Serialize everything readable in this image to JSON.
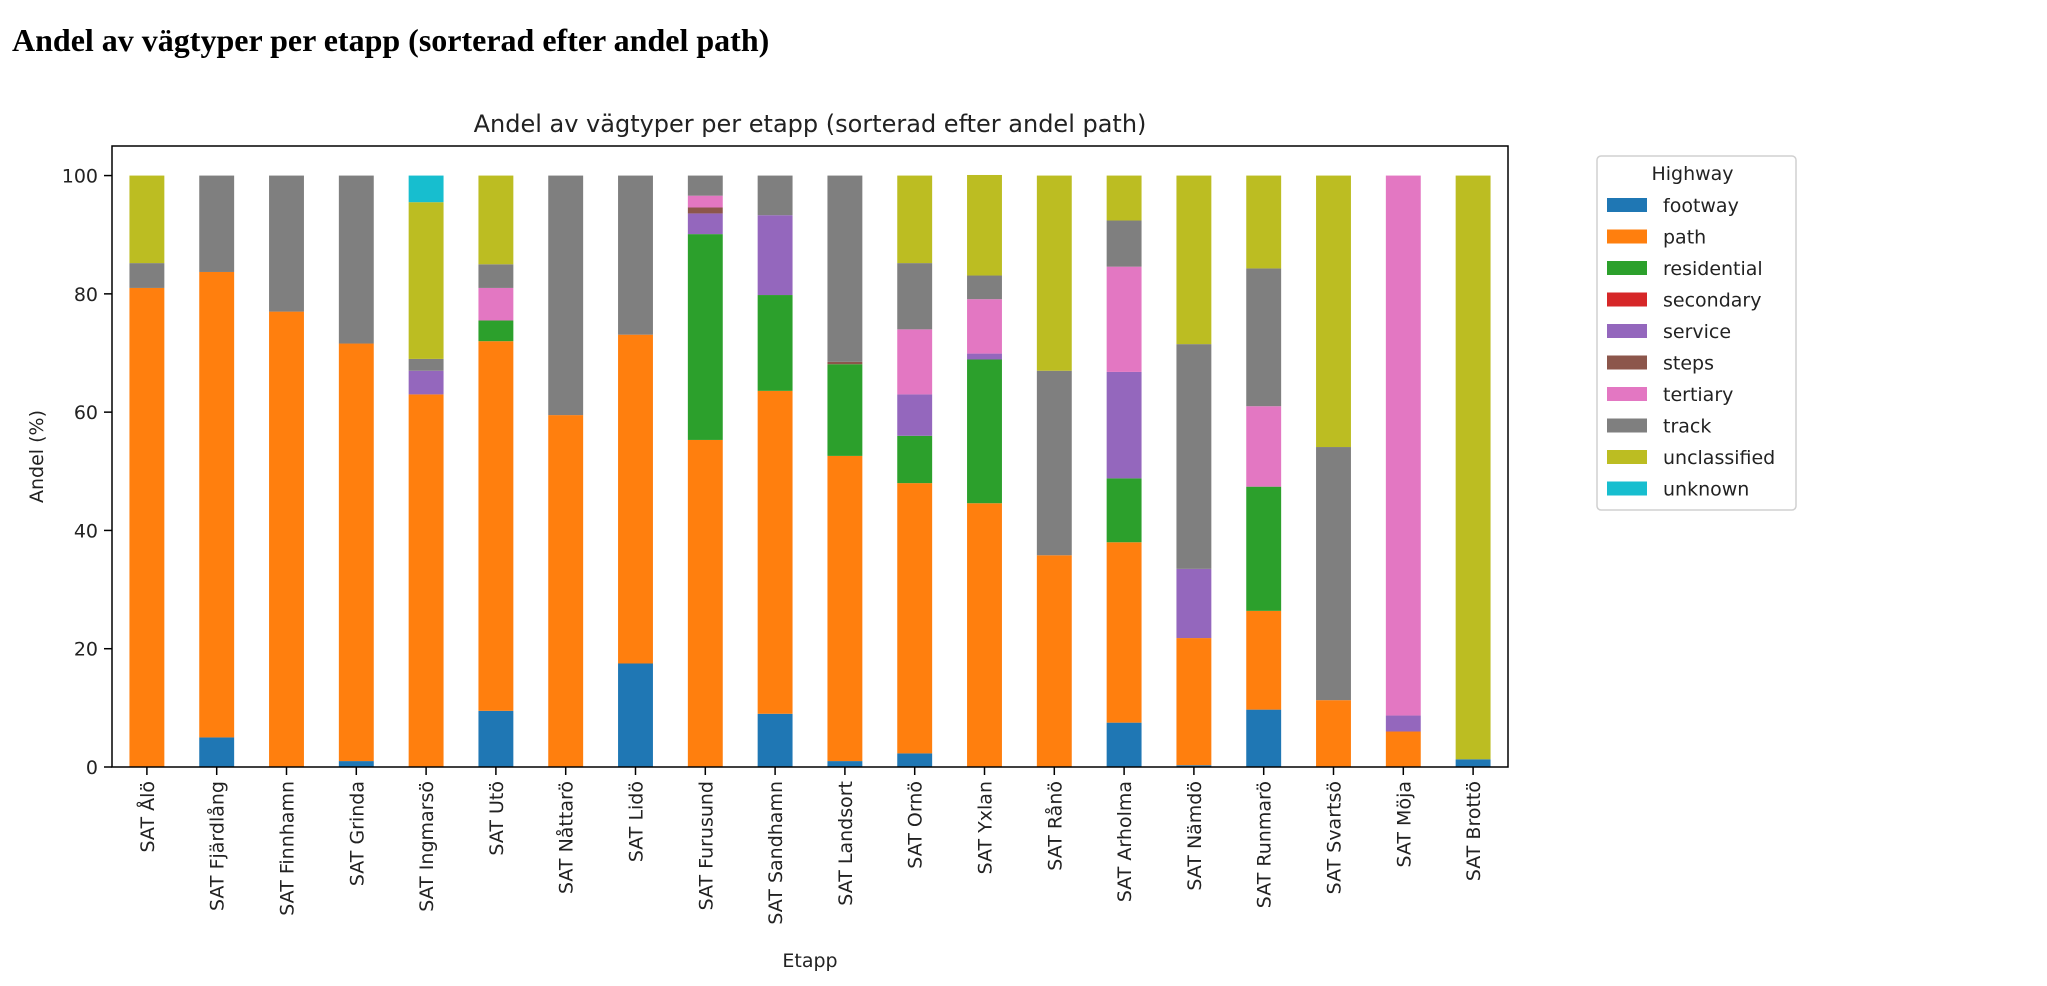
{
  "page": {
    "heading": "Andel av vägtyper per etapp (sorterad efter andel path)"
  },
  "colors": {
    "footway": "#1f77b4",
    "path": "#ff7f0e",
    "residential": "#2ca02c",
    "secondary": "#d62728",
    "service": "#9467bd",
    "steps": "#8c564b",
    "tertiary": "#e377c2",
    "track": "#7f7f7f",
    "unclassified": "#bcbd22",
    "unknown": "#17becf"
  },
  "chart_data": {
    "type": "bar",
    "stacked": true,
    "title": "Andel av vägtyper per etapp (sorterad efter andel path)",
    "xlabel": "Etapp",
    "ylabel": "Andel (%)",
    "ylim": [
      0,
      105
    ],
    "yticks": [
      0,
      20,
      40,
      60,
      80,
      100
    ],
    "grid": false,
    "legend_title": "Highway",
    "legend_position": "outside-right-top",
    "categories": [
      "SAT Ålö",
      "SAT Fjärdlång",
      "SAT Finnhamn",
      "SAT Grinda",
      "SAT Ingmarsö",
      "SAT Utö",
      "SAT Nåttarö",
      "SAT Lidö",
      "SAT Furusund",
      "SAT Sandhamn",
      "SAT Landsort",
      "SAT Ornö",
      "SAT Yxlan",
      "SAT Rånö",
      "SAT Arholma",
      "SAT Nämdö",
      "SAT Runmarö",
      "SAT Svartsö",
      "SAT Möja",
      "SAT Brottö"
    ],
    "series": [
      {
        "name": "footway",
        "values": [
          0,
          5,
          0,
          1,
          0,
          9.5,
          0,
          17.5,
          0,
          9,
          1,
          2.3,
          0,
          0,
          7.5,
          0.3,
          9.7,
          0,
          0,
          1.3
        ]
      },
      {
        "name": "path",
        "values": [
          81,
          78.7,
          77,
          70.6,
          63,
          62.5,
          59.5,
          55.6,
          55.3,
          54.6,
          51.6,
          45.7,
          44.6,
          35.8,
          30.5,
          21.5,
          16.7,
          11.3,
          6,
          0
        ]
      },
      {
        "name": "residential",
        "values": [
          0,
          0,
          0,
          0,
          0,
          3.5,
          0,
          0,
          34.8,
          16.2,
          15.5,
          8,
          24.3,
          0,
          10.8,
          0,
          21,
          0,
          0,
          0
        ]
      },
      {
        "name": "secondary",
        "values": [
          0,
          0,
          0,
          0,
          0,
          0,
          0,
          0,
          0,
          0,
          0,
          0,
          0,
          0,
          0,
          0,
          0,
          0,
          0,
          0
        ]
      },
      {
        "name": "service",
        "values": [
          0,
          0,
          0,
          0,
          4,
          0,
          0,
          0,
          3.5,
          13.5,
          0,
          7,
          1,
          0,
          18,
          11.7,
          0,
          0,
          2.7,
          0
        ]
      },
      {
        "name": "steps",
        "values": [
          0,
          0,
          0,
          0,
          0,
          0,
          0,
          0,
          1,
          0,
          0.4,
          0,
          0,
          0,
          0,
          0,
          0,
          0,
          0,
          0
        ]
      },
      {
        "name": "tertiary",
        "values": [
          0,
          0,
          0,
          0,
          0,
          5.5,
          0,
          0,
          2,
          0,
          0,
          11,
          9.2,
          0,
          17.8,
          0,
          13.6,
          0,
          91.3,
          0
        ]
      },
      {
        "name": "track",
        "values": [
          4.2,
          16.3,
          23,
          28.4,
          2,
          4,
          40.5,
          26.9,
          3.4,
          6.7,
          31.5,
          11.2,
          4,
          31.2,
          7.8,
          38,
          23.3,
          42.8,
          0,
          0
        ]
      },
      {
        "name": "unclassified",
        "values": [
          14.8,
          0,
          0,
          0,
          26.5,
          15,
          0,
          0,
          0,
          0,
          0,
          14.8,
          17,
          33,
          7.6,
          28.5,
          15.7,
          45.9,
          0,
          98.7
        ]
      },
      {
        "name": "unknown",
        "values": [
          0,
          0,
          0,
          0,
          4.5,
          0,
          0,
          0,
          0,
          0,
          0,
          0,
          0,
          0,
          0,
          0,
          0,
          0,
          0,
          0
        ]
      }
    ]
  }
}
